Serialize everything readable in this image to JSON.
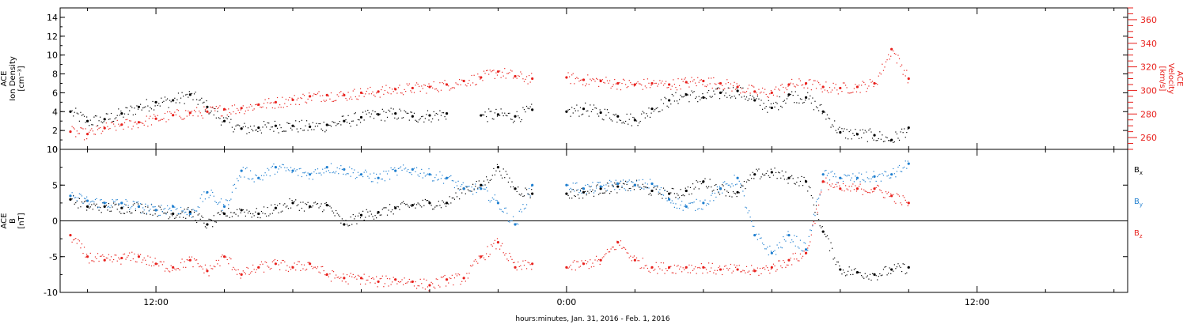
{
  "chart_data": [
    {
      "type": "scatter",
      "panel": "top",
      "x_unit": "hours since 2016-01-31 00:00 UT (negative = Jan. 31)",
      "xlim": [
        -14.8,
        16.4
      ],
      "ylabel_lines": [
        "ACE",
        "Ion Density",
        "[cm⁻³]"
      ],
      "ylim": [
        0,
        15
      ],
      "yticks": [
        0,
        2,
        4,
        6,
        8,
        10,
        12,
        14
      ],
      "ylabel2_lines": [
        "ACE",
        "Velocity",
        "[km/s]"
      ],
      "ylim2": [
        250,
        370
      ],
      "yticks2": [
        260,
        280,
        300,
        320,
        340,
        360
      ],
      "series": [
        {
          "key": "density",
          "color": "#000000",
          "axis": "left",
          "x": [
            -14.5,
            -14.0,
            -13.5,
            -13.0,
            -12.5,
            -12.0,
            -11.5,
            -11.0,
            -10.5,
            -10.0,
            -9.5,
            -9.0,
            -8.5,
            -8.0,
            -7.5,
            -7.0,
            -6.5,
            -6.0,
            -5.5,
            -5.0,
            -4.5,
            -4.0,
            -3.5,
            -3.0,
            -2.5,
            -2.0,
            -1.5,
            -1.0,
            -0.5,
            0.0,
            0.5,
            1.0,
            1.5,
            2.0,
            2.5,
            3.0,
            3.5,
            4.0,
            4.5,
            5.0,
            5.5,
            6.0,
            6.5,
            7.0,
            7.5,
            8.0,
            8.5,
            9.0,
            9.5,
            10.0
          ],
          "y": [
            4.0,
            3.0,
            3.2,
            3.8,
            4.5,
            5.0,
            5.2,
            5.8,
            4.5,
            3.0,
            2.2,
            2.3,
            2.5,
            2.5,
            2.4,
            2.6,
            3.0,
            3.4,
            3.7,
            3.8,
            3.5,
            3.6,
            3.8,
            null,
            3.6,
            3.7,
            3.5,
            4.2,
            null,
            4.0,
            4.3,
            3.9,
            3.5,
            3.1,
            4.3,
            5.2,
            5.8,
            5.5,
            6.0,
            6.2,
            5.2,
            4.4,
            5.8,
            5.5,
            4.0,
            1.8,
            1.6,
            1.5,
            1.0,
            2.3
          ]
        },
        {
          "key": "velocity",
          "color": "#e8211d",
          "axis": "right",
          "x": [
            -14.5,
            -14.0,
            -13.5,
            -13.0,
            -12.5,
            -12.0,
            -11.5,
            -11.0,
            -10.5,
            -10.0,
            -9.5,
            -9.0,
            -8.5,
            -8.0,
            -7.5,
            -7.0,
            -6.5,
            -6.0,
            -5.5,
            -5.0,
            -4.5,
            -4.0,
            -3.5,
            -3.0,
            -2.5,
            -2.0,
            -1.5,
            -1.0,
            -0.5,
            0.0,
            0.5,
            1.0,
            1.5,
            2.0,
            2.5,
            3.0,
            3.5,
            4.0,
            4.5,
            5.0,
            5.5,
            6.0,
            6.5,
            7.0,
            7.5,
            8.0,
            8.5,
            9.0,
            9.5,
            10.0
          ],
          "y": [
            265,
            263,
            268,
            271,
            273,
            276,
            279,
            281,
            282,
            284,
            285,
            288,
            290,
            292,
            295,
            296,
            296,
            298,
            299,
            301,
            302,
            303,
            305,
            308,
            311,
            316,
            312,
            310,
            null,
            311,
            309,
            308,
            306,
            305,
            306,
            305,
            307,
            308,
            306,
            303,
            299,
            298,
            305,
            306,
            303,
            302,
            303,
            306,
            335,
            310
          ]
        }
      ]
    },
    {
      "type": "scatter",
      "panel": "bottom",
      "x_unit": "hours since 2016-01-31 00:00 UT (negative = Jan. 31)",
      "xlim": [
        -14.8,
        16.4
      ],
      "ylabel_lines": [
        "ACE",
        "B",
        "[nT]"
      ],
      "ylim": [
        -10,
        10
      ],
      "yticks": [
        -10,
        -5,
        0,
        5,
        10
      ],
      "zero_line": true,
      "series": [
        {
          "key": "bx",
          "label_main": "B",
          "label_sub": "x",
          "color": "#000000",
          "x": [
            -14.5,
            -14.0,
            -13.5,
            -13.0,
            -12.5,
            -12.0,
            -11.5,
            -11.0,
            -10.5,
            -10.0,
            -9.5,
            -9.0,
            -8.5,
            -8.0,
            -7.5,
            -7.0,
            -6.5,
            -6.0,
            -5.5,
            -5.0,
            -4.5,
            -4.0,
            -3.5,
            -3.0,
            -2.5,
            -2.0,
            -1.5,
            -1.0,
            -0.5,
            0.0,
            0.5,
            1.0,
            1.5,
            2.0,
            2.5,
            3.0,
            3.5,
            4.0,
            4.5,
            5.0,
            5.5,
            6.0,
            6.5,
            7.0,
            7.5,
            8.0,
            8.5,
            9.0,
            9.5,
            10.0
          ],
          "y": [
            3.0,
            2.0,
            2.0,
            1.8,
            2.0,
            1.5,
            1.0,
            1.2,
            -0.5,
            1.0,
            1.5,
            1.0,
            1.8,
            2.5,
            2.0,
            2.2,
            -0.5,
            0.8,
            1.2,
            1.8,
            2.2,
            2.5,
            2.5,
            4.5,
            5.0,
            7.5,
            4.5,
            3.8,
            null,
            3.8,
            4.0,
            4.5,
            4.8,
            5.0,
            4.2,
            3.8,
            4.2,
            5.5,
            4.5,
            4.0,
            6.5,
            6.8,
            6.0,
            5.5,
            -1.5,
            -6.8,
            -7.2,
            -7.5,
            -6.8,
            -6.5
          ]
        },
        {
          "key": "by",
          "label_main": "B",
          "label_sub": "y",
          "color": "#1f7fd0",
          "x": [
            -14.5,
            -14.0,
            -13.5,
            -13.0,
            -12.5,
            -12.0,
            -11.5,
            -11.0,
            -10.5,
            -10.0,
            -9.5,
            -9.0,
            -8.5,
            -8.0,
            -7.5,
            -7.0,
            -6.5,
            -6.0,
            -5.5,
            -5.0,
            -4.5,
            -4.0,
            -3.5,
            -3.0,
            -2.5,
            -2.0,
            -1.5,
            -1.0,
            -0.5,
            0.0,
            0.5,
            1.0,
            1.5,
            2.0,
            2.5,
            3.0,
            3.5,
            4.0,
            4.5,
            5.0,
            5.5,
            6.0,
            6.5,
            7.0,
            7.5,
            8.0,
            8.5,
            9.0,
            9.5,
            10.0
          ],
          "y": [
            3.5,
            2.8,
            2.5,
            2.5,
            2.0,
            1.5,
            2.0,
            1.0,
            4.0,
            2.0,
            7.0,
            6.0,
            7.5,
            7.0,
            6.5,
            7.5,
            7.2,
            6.5,
            6.0,
            7.0,
            7.2,
            6.5,
            6.0,
            4.5,
            4.5,
            2.5,
            -0.5,
            5.0,
            null,
            5.0,
            4.5,
            4.8,
            5.2,
            5.0,
            5.2,
            3.0,
            2.0,
            2.5,
            4.5,
            6.0,
            -2.0,
            -4.5,
            -2.0,
            -4.0,
            6.5,
            6.0,
            6.0,
            6.2,
            6.5,
            8.0
          ]
        },
        {
          "key": "bz",
          "label_main": "B",
          "label_sub": "z",
          "color": "#e8211d",
          "x": [
            -14.5,
            -14.0,
            -13.5,
            -13.0,
            -12.5,
            -12.0,
            -11.5,
            -11.0,
            -10.5,
            -10.0,
            -9.5,
            -9.0,
            -8.5,
            -8.0,
            -7.5,
            -7.0,
            -6.5,
            -6.0,
            -5.5,
            -5.0,
            -4.5,
            -4.0,
            -3.5,
            -3.0,
            -2.5,
            -2.0,
            -1.5,
            -1.0,
            -0.5,
            0.0,
            0.5,
            1.0,
            1.5,
            2.0,
            2.5,
            3.0,
            3.5,
            4.0,
            4.5,
            5.0,
            5.5,
            6.0,
            6.5,
            7.0,
            7.5,
            8.0,
            8.5,
            9.0,
            9.5,
            10.0
          ],
          "y": [
            -2.0,
            -5.0,
            -5.5,
            -5.2,
            -5.0,
            -6.0,
            -6.5,
            -5.5,
            -7.0,
            -5.0,
            -7.5,
            -6.5,
            -6.0,
            -6.5,
            -6.0,
            -7.5,
            -8.0,
            -8.0,
            -8.5,
            -8.2,
            -8.5,
            -9.0,
            -8.2,
            -8.0,
            -5.0,
            -3.0,
            -6.5,
            -6.0,
            null,
            -6.5,
            -6.0,
            -5.5,
            -3.0,
            -5.5,
            -6.5,
            -6.5,
            -6.5,
            -6.5,
            -6.8,
            -6.8,
            -7.0,
            -6.5,
            -5.5,
            -4.5,
            5.5,
            4.5,
            4.5,
            4.5,
            3.5,
            2.5
          ]
        }
      ]
    }
  ],
  "x_axis": {
    "tick_labels": [
      {
        "x": -12,
        "label": "12:00"
      },
      {
        "x": 0,
        "label": "0:00"
      },
      {
        "x": 12,
        "label": "12:00"
      }
    ],
    "minor_tick_hours": [
      -14,
      -10,
      -8,
      -6,
      -4,
      -2,
      2,
      4,
      6,
      8,
      10,
      14,
      16
    ],
    "title": "hours:minutes, Jan. 31, 2016 - Feb.  1, 2016"
  }
}
